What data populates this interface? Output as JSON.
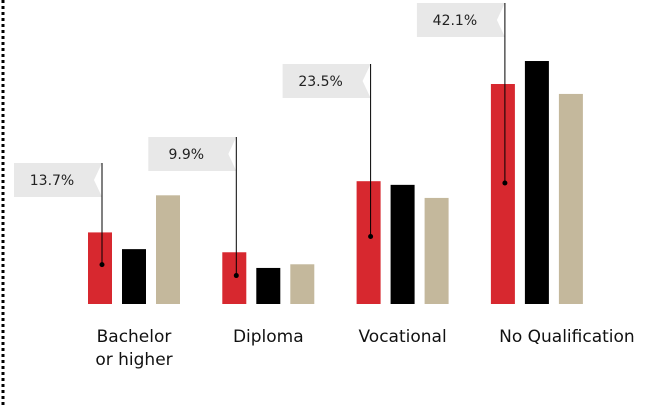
{
  "chart_data": {
    "type": "bar",
    "categories": [
      "Bachelor or higher",
      "Diploma",
      "Vocational",
      "No Qualification"
    ],
    "series": [
      {
        "color": "#d7282f",
        "values": [
          13.7,
          9.9,
          23.5,
          42.1
        ],
        "value_labels": [
          "13.7%",
          "9.9%",
          "23.5%",
          "42.1%"
        ]
      },
      {
        "color": "#000000",
        "values": [
          10.5,
          6.9,
          22.8,
          46.5
        ]
      },
      {
        "color": "#c4b89c",
        "values": [
          20.8,
          7.6,
          20.3,
          40.2
        ]
      }
    ],
    "ylim": [
      0,
      47
    ]
  }
}
